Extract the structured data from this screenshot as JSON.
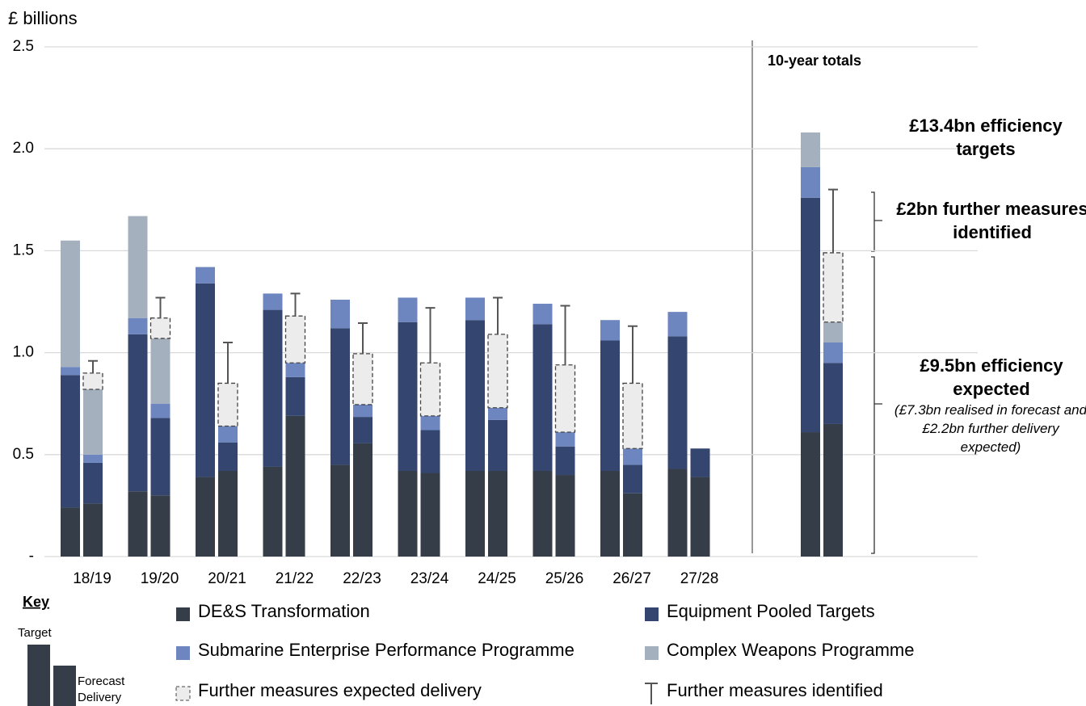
{
  "chart_data": {
    "type": "stacked-bar-pairs",
    "y_label": "£ billions",
    "categories": [
      "18/19",
      "19/20",
      "20/21",
      "21/22",
      "22/23",
      "23/24",
      "24/25",
      "25/26",
      "26/27",
      "27/28",
      null
    ],
    "ylim": [
      0,
      2.5
    ],
    "yticks": [
      {
        "value": 0,
        "label": "-"
      },
      0.5,
      {
        "value": 1,
        "label": "1.0"
      },
      1.5,
      {
        "value": 2,
        "label": "2.0"
      },
      2.5
    ],
    "grid": true,
    "series": [
      {
        "name": "DE&S Transformation",
        "color": "#343d48",
        "style": "solid",
        "target": [
          0.24,
          0.32,
          0.39,
          0.44,
          0.45,
          0.42,
          0.42,
          0.42,
          0.42,
          0.43,
          0.61
        ],
        "forecast": [
          0.26,
          0.3,
          0.42,
          0.69,
          0.555,
          0.41,
          0.42,
          0.4,
          0.31,
          0.39,
          0.65
        ]
      },
      {
        "name": "Equipment Pooled Targets",
        "color": "#344670",
        "style": "solid",
        "target": [
          0.65,
          0.77,
          0.95,
          0.77,
          0.67,
          0.73,
          0.74,
          0.72,
          0.64,
          0.65,
          1.15
        ],
        "forecast": [
          0.2,
          0.38,
          0.14,
          0.19,
          0.13,
          0.21,
          0.25,
          0.14,
          0.14,
          0.14,
          0.3
        ]
      },
      {
        "name": "Submarine Enterprise Performance Programme",
        "color": "#6d86bf",
        "style": "solid",
        "target": [
          0.04,
          0.08,
          0.08,
          0.08,
          0.14,
          0.12,
          0.11,
          0.1,
          0.1,
          0.12,
          0.15
        ],
        "forecast": [
          0.04,
          0.07,
          0.08,
          0.07,
          0.06,
          0.07,
          0.06,
          0.07,
          0.08,
          null,
          0.1
        ]
      },
      {
        "name": "Complex Weapons Programme",
        "color": "#a5b0be",
        "style": "solid",
        "target": [
          0.62,
          0.5,
          null,
          null,
          null,
          null,
          null,
          null,
          null,
          null,
          0.17
        ],
        "forecast": [
          0.32,
          0.32,
          null,
          null,
          null,
          null,
          null,
          null,
          null,
          null,
          0.1
        ]
      },
      {
        "name": "Further measures expected delivery",
        "color": "#ececec",
        "style": "dashed",
        "forecast": [
          0.08,
          0.1,
          0.21,
          0.23,
          0.25,
          0.26,
          0.36,
          0.33,
          0.32,
          null,
          0.34
        ]
      },
      {
        "name": "Further measures identified",
        "color": "#555555",
        "style": "whisker",
        "forecast": [
          0.06,
          0.1,
          0.2,
          0.11,
          0.15,
          0.27,
          0.18,
          0.29,
          0.28,
          null,
          0.31
        ]
      }
    ],
    "annotations": {
      "totals": "10-year totals",
      "targets": "£13.4bn efficiency targets",
      "identified": "£2bn further measures identified",
      "expected": "£9.5bn efficiency expected",
      "expected_note": "(£7.3bn realised in forecast and £2.2bn further delivery expected)"
    },
    "key": {
      "title": "Key",
      "target": "Target",
      "forecast": "Forecast Delivery"
    }
  }
}
